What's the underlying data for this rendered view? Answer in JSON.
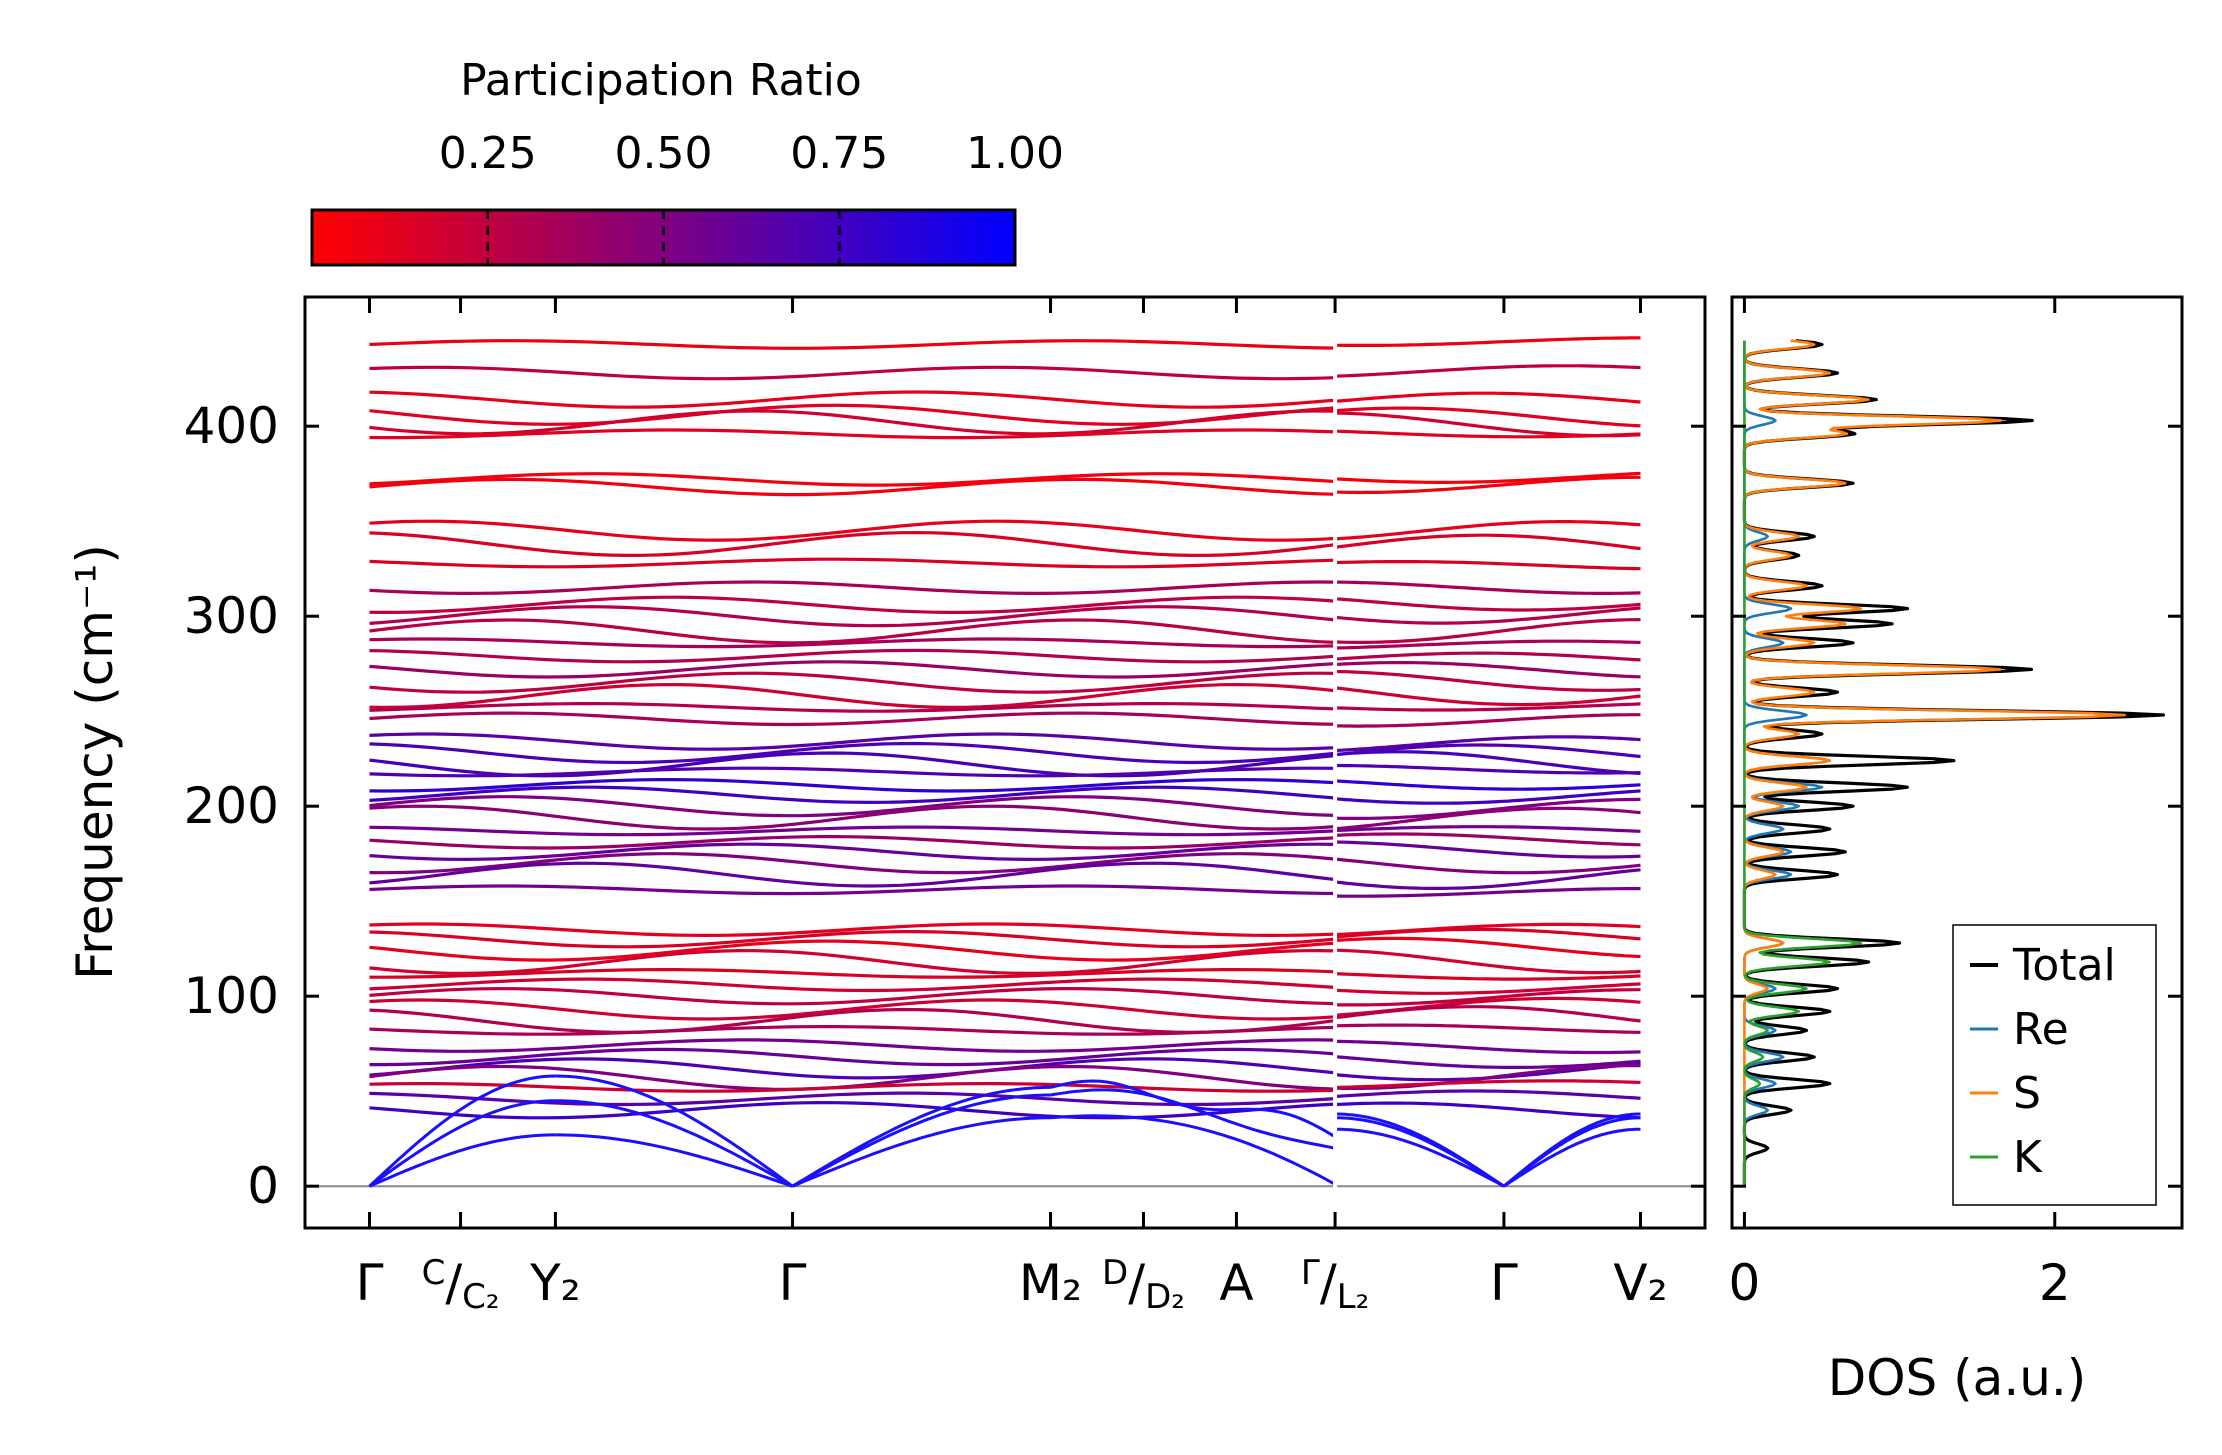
{
  "chart_data": [
    {
      "type": "colorbar",
      "title": "Participation Ratio",
      "ticks": [
        0.25,
        0.5,
        0.75,
        1.0
      ],
      "tick_labels": [
        "0.25",
        "0.50",
        "0.75",
        "1.00"
      ],
      "range": [
        0.0,
        1.0
      ],
      "colormap": [
        "#ff0000",
        "#0000ff"
      ]
    },
    {
      "type": "line",
      "subtype": "phonon-band-structure",
      "ylabel": "Frequency (cm⁻¹)",
      "ylim": [
        -22,
        468
      ],
      "yticks": [
        0,
        100,
        200,
        300,
        400
      ],
      "ytick_labels": [
        "0",
        "100",
        "200",
        "300",
        "400"
      ],
      "xlim": [
        -0.34,
        7.04
      ],
      "xticks": [
        {
          "pos": 0.0,
          "label": "Γ"
        },
        {
          "pos": 0.48,
          "label": "C/C₂"
        },
        {
          "pos": 0.98,
          "label": "Y₂"
        },
        {
          "pos": 2.23,
          "label": "Γ"
        },
        {
          "pos": 3.59,
          "label": "M₂"
        },
        {
          "pos": 4.08,
          "label": "D/D₂"
        },
        {
          "pos": 4.57,
          "label": "A"
        },
        {
          "pos": 5.09,
          "label": "Γ/L₂"
        },
        {
          "pos": 5.98,
          "label": "Γ"
        },
        {
          "pos": 6.7,
          "label": "V₂"
        }
      ],
      "tick_label_parts": [
        {
          "main": "Γ"
        },
        {
          "sup": "C",
          "main": "/",
          "sub": "C₂"
        },
        {
          "main": "Y₂"
        },
        {
          "main": "Γ"
        },
        {
          "main": "M₂"
        },
        {
          "sup": "D",
          "main": "/",
          "sub": "D₂"
        },
        {
          "main": "A"
        },
        {
          "sup": "Γ",
          "main": "/",
          "sub": "L₂"
        },
        {
          "main": "Γ"
        },
        {
          "main": "V₂"
        }
      ],
      "segment_break": 5.09,
      "acoustic_branches": {
        "gamma_points": [
          0.0,
          2.23,
          5.98
        ],
        "zone_boundary_values": [
          {
            "pos": 0.98,
            "values": [
              27,
              45,
              58
            ]
          },
          {
            "pos": 3.59,
            "values": [
              36,
              48,
              52
            ]
          },
          {
            "pos": 5.09,
            "values": [
              1,
              20,
              26
            ]
          },
          {
            "pos": 6.7,
            "values": [
              30,
              36,
              38
            ]
          }
        ]
      },
      "optical_bands": [
        {
          "f": 443,
          "pr": 0.08
        },
        {
          "f": 428,
          "pr": 0.25
        },
        {
          "f": 414,
          "pr": 0.1
        },
        {
          "f": 406,
          "pr": 0.12
        },
        {
          "f": 402,
          "pr": 0.18
        },
        {
          "f": 396,
          "pr": 0.12
        },
        {
          "f": 372,
          "pr": 0.05
        },
        {
          "f": 368,
          "pr": 0.05
        },
        {
          "f": 345,
          "pr": 0.1
        },
        {
          "f": 338,
          "pr": 0.15
        },
        {
          "f": 328,
          "pr": 0.15
        },
        {
          "f": 315,
          "pr": 0.35
        },
        {
          "f": 306,
          "pr": 0.25
        },
        {
          "f": 300,
          "pr": 0.3
        },
        {
          "f": 292,
          "pr": 0.28
        },
        {
          "f": 286,
          "pr": 0.35
        },
        {
          "f": 279,
          "pr": 0.3
        },
        {
          "f": 272,
          "pr": 0.4
        },
        {
          "f": 265,
          "pr": 0.25
        },
        {
          "f": 258,
          "pr": 0.2
        },
        {
          "f": 252,
          "pr": 0.3
        },
        {
          "f": 246,
          "pr": 0.35
        },
        {
          "f": 234,
          "pr": 0.65
        },
        {
          "f": 228,
          "pr": 0.7
        },
        {
          "f": 222,
          "pr": 0.72
        },
        {
          "f": 218,
          "pr": 0.68
        },
        {
          "f": 211,
          "pr": 0.82
        },
        {
          "f": 206,
          "pr": 0.75
        },
        {
          "f": 200,
          "pr": 0.5
        },
        {
          "f": 194,
          "pr": 0.45
        },
        {
          "f": 187,
          "pr": 0.55
        },
        {
          "f": 181,
          "pr": 0.4
        },
        {
          "f": 176,
          "pr": 0.6
        },
        {
          "f": 170,
          "pr": 0.5
        },
        {
          "f": 164,
          "pr": 0.62
        },
        {
          "f": 156,
          "pr": 0.55
        },
        {
          "f": 135,
          "pr": 0.12
        },
        {
          "f": 130,
          "pr": 0.15
        },
        {
          "f": 124,
          "pr": 0.1
        },
        {
          "f": 118,
          "pr": 0.18
        },
        {
          "f": 112,
          "pr": 0.15
        },
        {
          "f": 106,
          "pr": 0.2
        },
        {
          "f": 100,
          "pr": 0.25
        },
        {
          "f": 93,
          "pr": 0.2
        },
        {
          "f": 87,
          "pr": 0.3
        },
        {
          "f": 82,
          "pr": 0.35
        },
        {
          "f": 74,
          "pr": 0.55
        },
        {
          "f": 68,
          "pr": 0.6
        },
        {
          "f": 62,
          "pr": 0.7
        },
        {
          "f": 57,
          "pr": 0.5
        },
        {
          "f": 52,
          "pr": 0.2
        },
        {
          "f": 46,
          "pr": 0.65
        },
        {
          "f": 40,
          "pr": 0.75
        }
      ]
    },
    {
      "type": "line",
      "subtype": "density-of-states",
      "xlabel": "DOS (a.u.)",
      "xlim": [
        -0.08,
        2.82
      ],
      "xticks": [
        0,
        2
      ],
      "xtick_labels": [
        "0",
        "2"
      ],
      "legend": "lower-right",
      "series": [
        {
          "name": "Total",
          "color": "#000000",
          "peaks": [
            [
              443,
              0.5
            ],
            [
              428,
              0.6
            ],
            [
              414,
              0.85
            ],
            [
              403,
              1.85
            ],
            [
              396,
              0.7
            ],
            [
              370,
              0.7
            ],
            [
              342,
              0.45
            ],
            [
              332,
              0.35
            ],
            [
              316,
              0.5
            ],
            [
              304,
              1.05
            ],
            [
              296,
              0.95
            ],
            [
              286,
              0.7
            ],
            [
              272,
              1.85
            ],
            [
              260,
              0.6
            ],
            [
              248,
              2.7
            ],
            [
              238,
              0.5
            ],
            [
              224,
              1.35
            ],
            [
              210,
              1.05
            ],
            [
              200,
              0.7
            ],
            [
              188,
              0.55
            ],
            [
              176,
              0.65
            ],
            [
              164,
              0.6
            ],
            [
              128,
              1.0
            ],
            [
              118,
              0.8
            ],
            [
              104,
              0.6
            ],
            [
              92,
              0.55
            ],
            [
              82,
              0.4
            ],
            [
              68,
              0.45
            ],
            [
              54,
              0.55
            ],
            [
              40,
              0.3
            ],
            [
              20,
              0.15
            ]
          ]
        },
        {
          "name": "Re",
          "color": "#1f77b4",
          "peaks": [
            [
              403,
              0.2
            ],
            [
              342,
              0.15
            ],
            [
              304,
              0.3
            ],
            [
              286,
              0.25
            ],
            [
              248,
              0.4
            ],
            [
              224,
              0.55
            ],
            [
              210,
              0.5
            ],
            [
              200,
              0.35
            ],
            [
              188,
              0.25
            ],
            [
              176,
              0.3
            ],
            [
              164,
              0.3
            ],
            [
              128,
              0.25
            ],
            [
              104,
              0.2
            ],
            [
              82,
              0.2
            ],
            [
              68,
              0.25
            ],
            [
              54,
              0.2
            ],
            [
              40,
              0.15
            ]
          ]
        },
        {
          "name": "S",
          "color": "#ff7f0e",
          "peaks": [
            [
              443,
              0.45
            ],
            [
              428,
              0.55
            ],
            [
              414,
              0.8
            ],
            [
              403,
              1.65
            ],
            [
              396,
              0.65
            ],
            [
              370,
              0.65
            ],
            [
              342,
              0.35
            ],
            [
              332,
              0.3
            ],
            [
              316,
              0.4
            ],
            [
              304,
              0.75
            ],
            [
              296,
              0.65
            ],
            [
              286,
              0.45
            ],
            [
              272,
              1.65
            ],
            [
              260,
              0.45
            ],
            [
              248,
              2.45
            ],
            [
              238,
              0.35
            ],
            [
              224,
              0.55
            ],
            [
              210,
              0.4
            ],
            [
              200,
              0.25
            ],
            [
              176,
              0.25
            ],
            [
              164,
              0.2
            ],
            [
              128,
              0.25
            ],
            [
              104,
              0.15
            ]
          ]
        },
        {
          "name": "K",
          "color": "#2ca02c",
          "peaks": [
            [
              128,
              0.75
            ],
            [
              118,
              0.55
            ],
            [
              104,
              0.4
            ],
            [
              92,
              0.35
            ],
            [
              82,
              0.15
            ],
            [
              68,
              0.12
            ],
            [
              54,
              0.1
            ]
          ]
        }
      ]
    }
  ]
}
